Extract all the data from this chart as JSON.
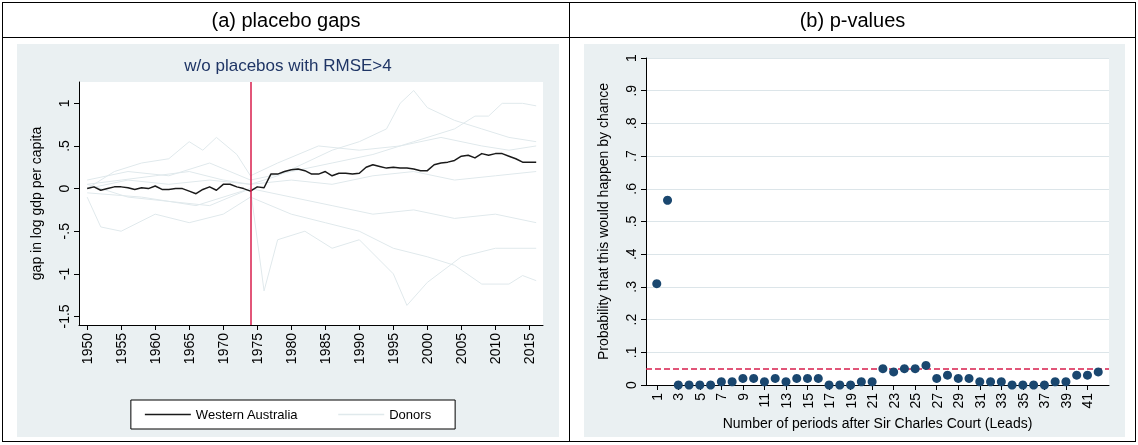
{
  "chart_data": [
    {
      "type": "line",
      "title": "(a) placebo gaps",
      "subtitle": "w/o placebos with RMSE>4",
      "ylabel": "gap in log gdp per capita",
      "xlim": [
        1948.8,
        2017
      ],
      "xticks": [
        1950,
        1955,
        1960,
        1965,
        1970,
        1975,
        1980,
        1985,
        1990,
        1995,
        2000,
        2005,
        2010,
        2015
      ],
      "ylim": [
        -1.6,
        1.25
      ],
      "yticks": [
        {
          "value": -1.5,
          "label": "-1.5"
        },
        -1,
        {
          "value": -0.5,
          "label": "-.5"
        },
        0,
        {
          "value": 0.5,
          "label": ".5"
        },
        1
      ],
      "legend": "bottom",
      "line_style": "solid",
      "ref_lines": [
        {
          "axis": "x",
          "value": 1974,
          "label": null,
          "color": "#d81e4c",
          "line_style": "solid"
        }
      ],
      "series": [
        {
          "name": "Western Australia",
          "color": "#1a1a1a",
          "x": [
            1950,
            1951,
            1952,
            1953,
            1954,
            1955,
            1956,
            1957,
            1958,
            1959,
            1960,
            1961,
            1962,
            1963,
            1964,
            1965,
            1966,
            1967,
            1968,
            1969,
            1970,
            1971,
            1972,
            1973,
            1974,
            1975,
            1976,
            1977,
            1978,
            1979,
            1980,
            1981,
            1982,
            1983,
            1984,
            1985,
            1986,
            1987,
            1988,
            1989,
            1990,
            1991,
            1992,
            1993,
            1994,
            1995,
            1996,
            1997,
            1998,
            1999,
            2000,
            2001,
            2002,
            2003,
            2004,
            2005,
            2006,
            2007,
            2008,
            2009,
            2010,
            2011,
            2012,
            2013,
            2014,
            2015,
            2016
          ],
          "values": [
            0,
            0.02,
            -0.02,
            0,
            0.02,
            0.02,
            0.01,
            -0.01,
            0.01,
            0,
            0.03,
            -0.01,
            -0.01,
            0,
            0,
            -0.03,
            -0.06,
            -0.01,
            0.02,
            -0.02,
            0.05,
            0.05,
            0.02,
            0,
            -0.03,
            0.02,
            0.01,
            0.17,
            0.17,
            0.2,
            0.22,
            0.23,
            0.21,
            0.17,
            0.17,
            0.2,
            0.15,
            0.18,
            0.18,
            0.17,
            0.18,
            0.25,
            0.28,
            0.26,
            0.24,
            0.25,
            0.24,
            0.24,
            0.23,
            0.21,
            0.21,
            0.28,
            0.3,
            0.31,
            0.33,
            0.38,
            0.39,
            0.36,
            0.41,
            0.39,
            0.41,
            0.41,
            0.38,
            0.35,
            0.31,
            0.31,
            0.31
          ]
        },
        {
          "name": "Donors",
          "color": "#e0e9ec",
          "x": [
            1950,
            1955,
            1960,
            1965,
            1970,
            1974,
            1978,
            1982,
            1986,
            1990,
            1994,
            1996,
            1998,
            2000,
            2004,
            2008,
            2012,
            2016
          ],
          "values": [
            0.05,
            0.1,
            0.15,
            0.2,
            0.1,
            0.05,
            0.15,
            0.3,
            0.45,
            0.55,
            0.7,
            1.0,
            1.15,
            0.95,
            0.8,
            0.7,
            0.6,
            0.55
          ]
        },
        {
          "color": "#e0e9ec",
          "x": [
            1950,
            1956,
            1962,
            1968,
            1974,
            1980,
            1986,
            1992,
            1998,
            2004,
            2007,
            2009,
            2011,
            2014,
            2016
          ],
          "values": [
            0.1,
            0.2,
            0.15,
            0.3,
            0.1,
            0.2,
            0.3,
            0.4,
            0.55,
            0.7,
            0.85,
            0.85,
            1.0,
            1.0,
            0.97
          ]
        },
        {
          "color": "#e0e9ec",
          "x": [
            1950,
            1954,
            1958,
            1962,
            1965,
            1967,
            1969,
            1972,
            1974,
            1978,
            1984,
            1990,
            1996,
            2002,
            2008,
            2012,
            2016
          ],
          "values": [
            0,
            0.2,
            0.3,
            0.35,
            0.55,
            0.45,
            0.6,
            0.4,
            0.15,
            0.3,
            0.5,
            0.45,
            0.5,
            0.6,
            0.5,
            0.45,
            0.5
          ]
        },
        {
          "color": "#e0e9ec",
          "x": [
            1950,
            1952,
            1955,
            1960,
            1965,
            1970,
            1974,
            1980,
            1985,
            1990,
            1995,
            2000,
            2004,
            2008,
            2012,
            2014,
            2016
          ],
          "values": [
            -0.1,
            -0.45,
            -0.5,
            -0.3,
            -0.4,
            -0.3,
            -0.1,
            -0.3,
            -0.4,
            -0.5,
            -0.7,
            -0.8,
            -0.9,
            -1.12,
            -1.12,
            -1.02,
            -1.08
          ]
        },
        {
          "color": "#e0e9ec",
          "x": [
            1950,
            1958,
            1966,
            1974,
            1976,
            1978,
            1982,
            1986,
            1990,
            1995,
            1997,
            2000,
            2005,
            2010,
            2016
          ],
          "values": [
            -0.05,
            -0.1,
            -0.2,
            0,
            -1.2,
            -0.6,
            -0.5,
            -0.7,
            -0.6,
            -1.0,
            -1.37,
            -1.1,
            -0.8,
            -0.7,
            -0.7
          ]
        },
        {
          "color": "#e0e9ec",
          "x": [
            1950,
            1956,
            1962,
            1968,
            1974,
            1980,
            1986,
            1992,
            1998,
            2004,
            2010,
            2016
          ],
          "values": [
            0.05,
            -0.1,
            -0.15,
            -0.2,
            0,
            -0.1,
            -0.2,
            -0.3,
            -0.25,
            -0.35,
            -0.3,
            -0.4
          ]
        },
        {
          "color": "#e0e9ec",
          "x": [
            1950,
            1956,
            1962,
            1968,
            1974,
            1980,
            1986,
            1992,
            1998,
            2004,
            2010,
            2016
          ],
          "values": [
            0,
            0.1,
            0.05,
            0.1,
            0.05,
            0.1,
            0.05,
            0.15,
            0.2,
            0.1,
            0.15,
            0.2
          ]
        }
      ]
    },
    {
      "type": "scatter",
      "title": "(b) p-values",
      "xlabel": "Number of periods after Sir Charles Court (Leads)",
      "ylabel": "Probability that this would happen by chance",
      "xlim": [
        0,
        43
      ],
      "xticks": [
        1,
        3,
        5,
        7,
        9,
        11,
        13,
        15,
        17,
        19,
        21,
        23,
        25,
        27,
        29,
        31,
        33,
        35,
        37,
        39,
        41
      ],
      "ylim": [
        0,
        1
      ],
      "yticks": [
        0,
        {
          "value": 0.1,
          "label": ".1"
        },
        {
          "value": 0.2,
          "label": ".2"
        },
        {
          "value": 0.3,
          "label": ".3"
        },
        {
          "value": 0.4,
          "label": ".4"
        },
        {
          "value": 0.5,
          "label": ".5"
        },
        {
          "value": 0.6,
          "label": ".6"
        },
        {
          "value": 0.7,
          "label": ".7"
        },
        {
          "value": 0.8,
          "label": ".8"
        },
        {
          "value": 0.9,
          "label": ".9"
        },
        1
      ],
      "grid": "y",
      "marker": "circle",
      "ref_lines": [
        {
          "axis": "y",
          "value": 0.05,
          "label": null,
          "color": "#d81e4c",
          "line_style": "dashed"
        }
      ],
      "series": [
        {
          "color": "#1a476f",
          "x": [
            1,
            2,
            3,
            4,
            5,
            6,
            7,
            8,
            9,
            10,
            11,
            12,
            13,
            14,
            15,
            16,
            17,
            18,
            19,
            20,
            21,
            22,
            23,
            24,
            25,
            26,
            27,
            28,
            29,
            30,
            31,
            32,
            33,
            34,
            35,
            36,
            37,
            38,
            39,
            40,
            41,
            42
          ],
          "values": [
            0.31,
            0.565,
            0,
            0,
            0,
            0,
            0.01,
            0.01,
            0.02,
            0.02,
            0.01,
            0.02,
            0.01,
            0.02,
            0.02,
            0.02,
            0,
            0,
            0,
            0.01,
            0.01,
            0.05,
            0.04,
            0.05,
            0.05,
            0.06,
            0.02,
            0.03,
            0.02,
            0.02,
            0.01,
            0.01,
            0.01,
            0,
            0,
            0,
            0,
            0.01,
            0.01,
            0.03,
            0.03,
            0.04
          ]
        }
      ]
    }
  ]
}
